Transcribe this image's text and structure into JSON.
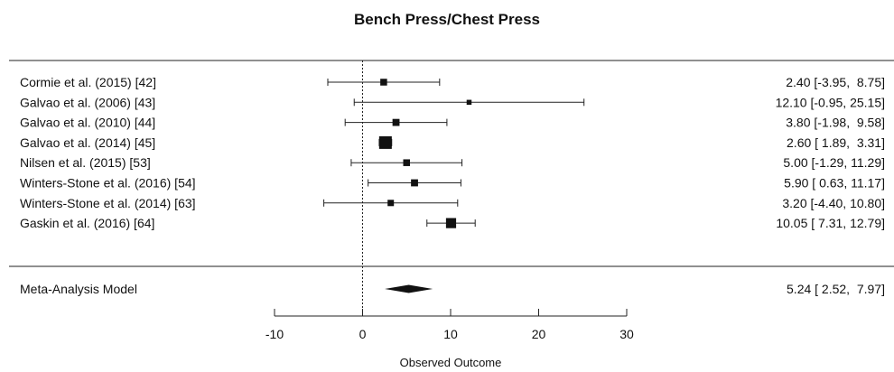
{
  "chart_data": {
    "type": "forest",
    "title": "Bench Press/Chest Press",
    "xlabel": "Observed Outcome",
    "xlim": [
      -10,
      30
    ],
    "ticks": [
      -10,
      0,
      10,
      20,
      30
    ],
    "tick_labels": [
      "-10",
      "0",
      "10",
      "20",
      "30"
    ],
    "reference_line": 0,
    "studies": [
      {
        "label": "Cormie et al. (2015) [42]",
        "estimate": 2.4,
        "lower": -3.95,
        "upper": 8.75,
        "text": "2.40 [-3.95,  8.75]",
        "weight": 0.35
      },
      {
        "label": "Galvao et al. (2006) [43]",
        "estimate": 12.1,
        "lower": -0.95,
        "upper": 25.15,
        "text": "12.10 [-0.95, 25.15]",
        "weight": 0.15
      },
      {
        "label": "Galvao et al. (2010) [44]",
        "estimate": 3.8,
        "lower": -1.98,
        "upper": 9.58,
        "text": "3.80 [-1.98,  9.58]",
        "weight": 0.38
      },
      {
        "label": "Galvao et al. (2014) [45]",
        "estimate": 2.6,
        "lower": 1.89,
        "upper": 3.31,
        "text": "2.60 [ 1.89,  3.31]",
        "weight": 1.0
      },
      {
        "label": "Nilsen et al. (2015) [53]",
        "estimate": 5.0,
        "lower": -1.29,
        "upper": 11.29,
        "text": "5.00 [-1.29, 11.29]",
        "weight": 0.35
      },
      {
        "label": "Winters-Stone et al. (2016) [54]",
        "estimate": 5.9,
        "lower": 0.63,
        "upper": 11.17,
        "text": "5.90 [ 0.63, 11.17]",
        "weight": 0.38
      },
      {
        "label": "Winters-Stone et al. (2014) [63]",
        "estimate": 3.2,
        "lower": -4.4,
        "upper": 10.8,
        "text": "3.20 [-4.40, 10.80]",
        "weight": 0.3
      },
      {
        "label": "Gaskin et al. (2016) [64]",
        "estimate": 10.05,
        "lower": 7.31,
        "upper": 12.79,
        "text": "10.05 [ 7.31, 12.79]",
        "weight": 0.72
      }
    ],
    "summary": {
      "label": "Meta-Analysis Model",
      "estimate": 5.24,
      "lower": 2.52,
      "upper": 7.97,
      "text": "5.24 [ 2.52,  7.97]"
    }
  }
}
